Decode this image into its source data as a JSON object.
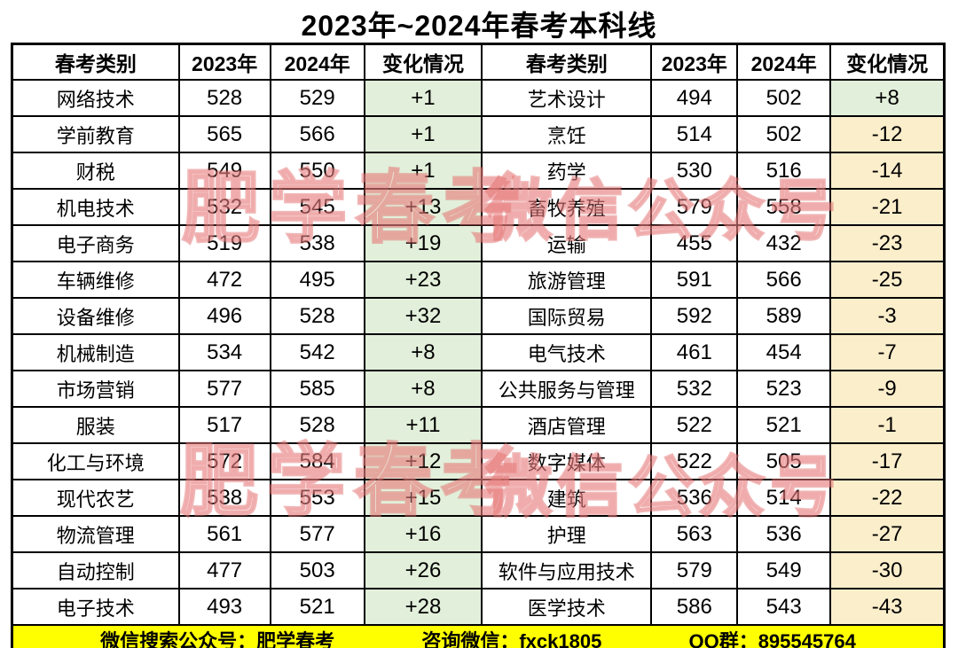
{
  "title": "2023年~2024年春考本科线",
  "table": {
    "headers": [
      "春考类别",
      "2023年",
      "2024年",
      "变化情况",
      "春考类别",
      "2023年",
      "2024年",
      "变化情况"
    ],
    "rows": [
      {
        "left": {
          "category": "网络技术",
          "y2023": "528",
          "y2024": "529",
          "change": "+1"
        },
        "right": {
          "category": "艺术设计",
          "y2023": "494",
          "y2024": "502",
          "change": "+8"
        }
      },
      {
        "left": {
          "category": "学前教育",
          "y2023": "565",
          "y2024": "566",
          "change": "+1"
        },
        "right": {
          "category": "烹饪",
          "y2023": "514",
          "y2024": "502",
          "change": "-12"
        }
      },
      {
        "left": {
          "category": "财税",
          "y2023": "549",
          "y2024": "550",
          "change": "+1"
        },
        "right": {
          "category": "药学",
          "y2023": "530",
          "y2024": "516",
          "change": "-14"
        }
      },
      {
        "left": {
          "category": "机电技术",
          "y2023": "532",
          "y2024": "545",
          "change": "+13"
        },
        "right": {
          "category": "畜牧养殖",
          "y2023": "579",
          "y2024": "558",
          "change": "-21"
        }
      },
      {
        "left": {
          "category": "电子商务",
          "y2023": "519",
          "y2024": "538",
          "change": "+19"
        },
        "right": {
          "category": "运输",
          "y2023": "455",
          "y2024": "432",
          "change": "-23"
        }
      },
      {
        "left": {
          "category": "车辆维修",
          "y2023": "472",
          "y2024": "495",
          "change": "+23"
        },
        "right": {
          "category": "旅游管理",
          "y2023": "591",
          "y2024": "566",
          "change": "-25"
        }
      },
      {
        "left": {
          "category": "设备维修",
          "y2023": "496",
          "y2024": "528",
          "change": "+32"
        },
        "right": {
          "category": "国际贸易",
          "y2023": "592",
          "y2024": "589",
          "change": "-3"
        }
      },
      {
        "left": {
          "category": "机械制造",
          "y2023": "534",
          "y2024": "542",
          "change": "+8"
        },
        "right": {
          "category": "电气技术",
          "y2023": "461",
          "y2024": "454",
          "change": "-7"
        }
      },
      {
        "left": {
          "category": "市场营销",
          "y2023": "577",
          "y2024": "585",
          "change": "+8"
        },
        "right": {
          "category": "公共服务与管理",
          "y2023": "532",
          "y2024": "523",
          "change": "-9"
        }
      },
      {
        "left": {
          "category": "服装",
          "y2023": "517",
          "y2024": "528",
          "change": "+11"
        },
        "right": {
          "category": "酒店管理",
          "y2023": "522",
          "y2024": "521",
          "change": "-1"
        }
      },
      {
        "left": {
          "category": "化工与环境",
          "y2023": "572",
          "y2024": "584",
          "change": "+12"
        },
        "right": {
          "category": "数字媒体",
          "y2023": "522",
          "y2024": "505",
          "change": "-17"
        }
      },
      {
        "left": {
          "category": "现代农艺",
          "y2023": "538",
          "y2024": "553",
          "change": "+15"
        },
        "right": {
          "category": "建筑",
          "y2023": "536",
          "y2024": "514",
          "change": "-22"
        }
      },
      {
        "left": {
          "category": "物流管理",
          "y2023": "561",
          "y2024": "577",
          "change": "+16"
        },
        "right": {
          "category": "护理",
          "y2023": "563",
          "y2024": "536",
          "change": "-27"
        }
      },
      {
        "left": {
          "category": "自动控制",
          "y2023": "477",
          "y2024": "503",
          "change": "+26"
        },
        "right": {
          "category": "软件与应用技术",
          "y2023": "579",
          "y2024": "549",
          "change": "-30"
        }
      },
      {
        "left": {
          "category": "电子技术",
          "y2023": "493",
          "y2024": "521",
          "change": "+28"
        },
        "right": {
          "category": "医学技术",
          "y2023": "586",
          "y2024": "543",
          "change": "-43"
        }
      }
    ]
  },
  "footer": {
    "wechat_search": "微信搜索公众号：肥学春考",
    "consult": "咨询微信：fxck1805",
    "qq_group": "QQ群：895545764"
  },
  "watermarks": {
    "texts": [
      "肥学春考",
      "微信公众号"
    ]
  },
  "colors": {
    "positive_bg": "#E2EFDA",
    "negative_bg": "#FBEECB",
    "footer_bg": "#FFFF00",
    "watermark": "#E26A6A",
    "border": "#000000"
  }
}
